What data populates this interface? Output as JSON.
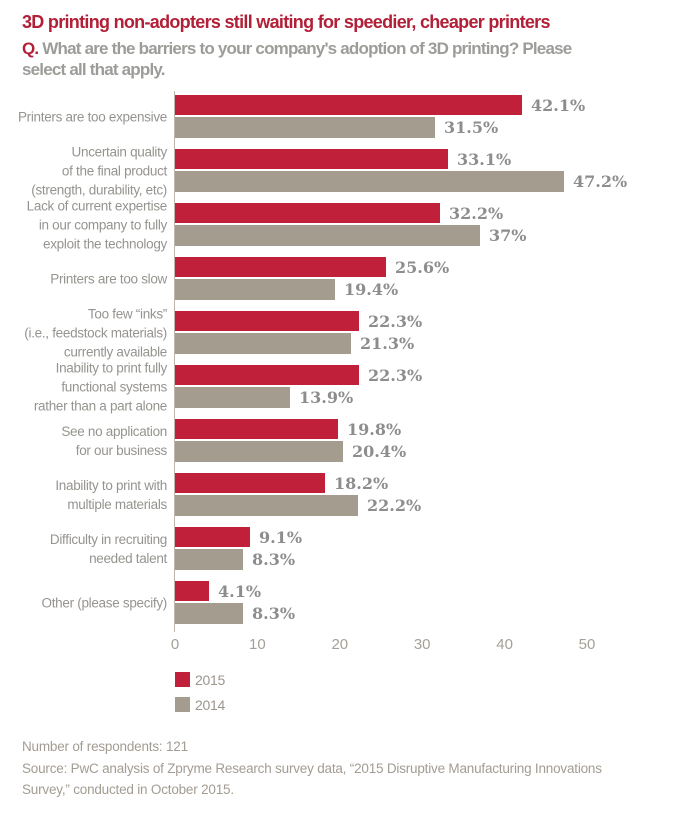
{
  "header": {
    "title": "3D printing non-adopters still waiting for speedier, cheaper printers",
    "question_prefix": "Q.",
    "question_lines": [
      "What are the barriers to your company's adoption of 3D printing? Please",
      "select all that apply."
    ]
  },
  "colors": {
    "title_red": "#b22038",
    "bar_red_2015": "#c1203a",
    "bar_gray_2014": "#a59c90",
    "axis_line": "#beb7ae",
    "label_gray": "#96948f",
    "value_gray": "#8d8d8d"
  },
  "chart_data": {
    "type": "bar",
    "orientation": "horizontal",
    "unit": "%",
    "title": "3D printing non-adopters still waiting for speedier, cheaper printers",
    "xlabel": "",
    "ylabel": "",
    "xlim": [
      0,
      58
    ],
    "x_ticks": [
      0,
      10,
      20,
      30,
      40,
      50
    ],
    "grid": false,
    "legend_position": "bottom-left",
    "categories": [
      [
        "Printers are too expensive"
      ],
      [
        "Uncertain quality",
        "of the final product",
        "(strength, durability, etc)"
      ],
      [
        "Lack of current expertise",
        "in our company to fully",
        "exploit the technology"
      ],
      [
        "Printers are too slow"
      ],
      [
        "Too few “inks”",
        "(i.e., feedstock materials)",
        "currently available"
      ],
      [
        "Inability to print fully",
        "functional systems",
        "rather than a part alone"
      ],
      [
        "See no application",
        "for our business"
      ],
      [
        "Inability to print with",
        "multiple materials"
      ],
      [
        "Difficulty in recruiting",
        "needed talent"
      ],
      [
        "Other (please specify)"
      ]
    ],
    "series": [
      {
        "name": "2015",
        "color": "#c1203a",
        "values": [
          42.1,
          33.1,
          32.2,
          25.6,
          22.3,
          22.3,
          19.8,
          18.2,
          9.1,
          4.1
        ],
        "labels": [
          "42.1%",
          "33.1%",
          "32.2%",
          "25.6%",
          "22.3%",
          "22.3%",
          "19.8%",
          "18.2%",
          "9.1%",
          "4.1%"
        ]
      },
      {
        "name": "2014",
        "color": "#a59c90",
        "values": [
          31.5,
          47.2,
          37,
          19.4,
          21.3,
          13.9,
          20.4,
          22.2,
          8.3,
          8.3
        ],
        "labels": [
          "31.5%",
          "47.2%",
          "37%",
          "19.4%",
          "21.3%",
          "13.9%",
          "20.4%",
          "22.2%",
          "8.3%",
          "8.3%"
        ]
      }
    ]
  },
  "footer": {
    "respondents": "Number of respondents: 121",
    "source_lines": [
      "Source: PwC analysis of Zpryme Research survey data, “2015 Disruptive Manufacturing Innovations",
      "Survey,” conducted in October 2015."
    ]
  }
}
